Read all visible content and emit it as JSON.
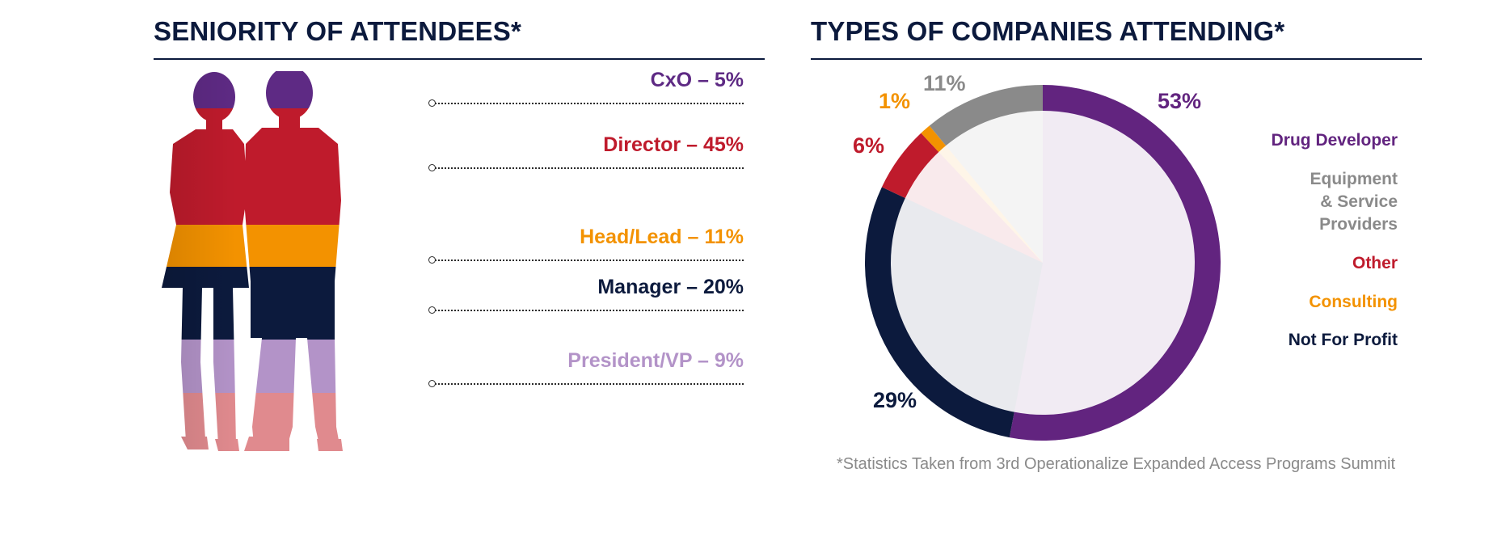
{
  "left_panel": {
    "title": "SENIORITY OF ATTENDEES*"
  },
  "right_panel": {
    "title": "TYPES OF COMPANIES ATTENDING*",
    "footnote": "*Statistics Taken from 3rd Operationalize Expanded Access Programs Summit"
  },
  "chart_data": [
    {
      "type": "bar",
      "categories": [
        "CxO",
        "Director",
        "Head/Lead",
        "Manager",
        "President/VP"
      ],
      "values": [
        5,
        45,
        11,
        20,
        9
      ],
      "labels": [
        "CxO – 5%",
        "Director – 45%",
        "Head/Lead – 11%",
        "Manager – 20%",
        "President/VP – 9%"
      ],
      "colors": [
        "#5e2a84",
        "#bf1b2c",
        "#f39200",
        "#0c1a3d",
        "#b393c8"
      ],
      "extra_band_color": "#e08a8e",
      "title": "SENIORITY OF ATTENDEES*"
    },
    {
      "type": "pie",
      "categories": [
        "Drug Developer",
        "Not For Profit",
        "Other",
        "Consulting",
        "Equipment\n& Service\nProviders"
      ],
      "values": [
        53,
        29,
        6,
        1,
        11
      ],
      "labels": [
        "53%",
        "29%",
        "6%",
        "1%",
        "11%"
      ],
      "colors": [
        "#62247f",
        "#0c1a3d",
        "#bf1b2c",
        "#f39200",
        "#8a8a8a"
      ],
      "legend_order": [
        "Drug Developer",
        "Equipment\n& Service\nProviders",
        "Other",
        "Consulting",
        "Not For Profit"
      ],
      "legend_colors": [
        "#62247f",
        "#8a8a8a",
        "#bf1b2c",
        "#f39200",
        "#0c1a3d"
      ],
      "legend": "right",
      "title": "TYPES OF COMPANIES ATTENDING*"
    }
  ]
}
